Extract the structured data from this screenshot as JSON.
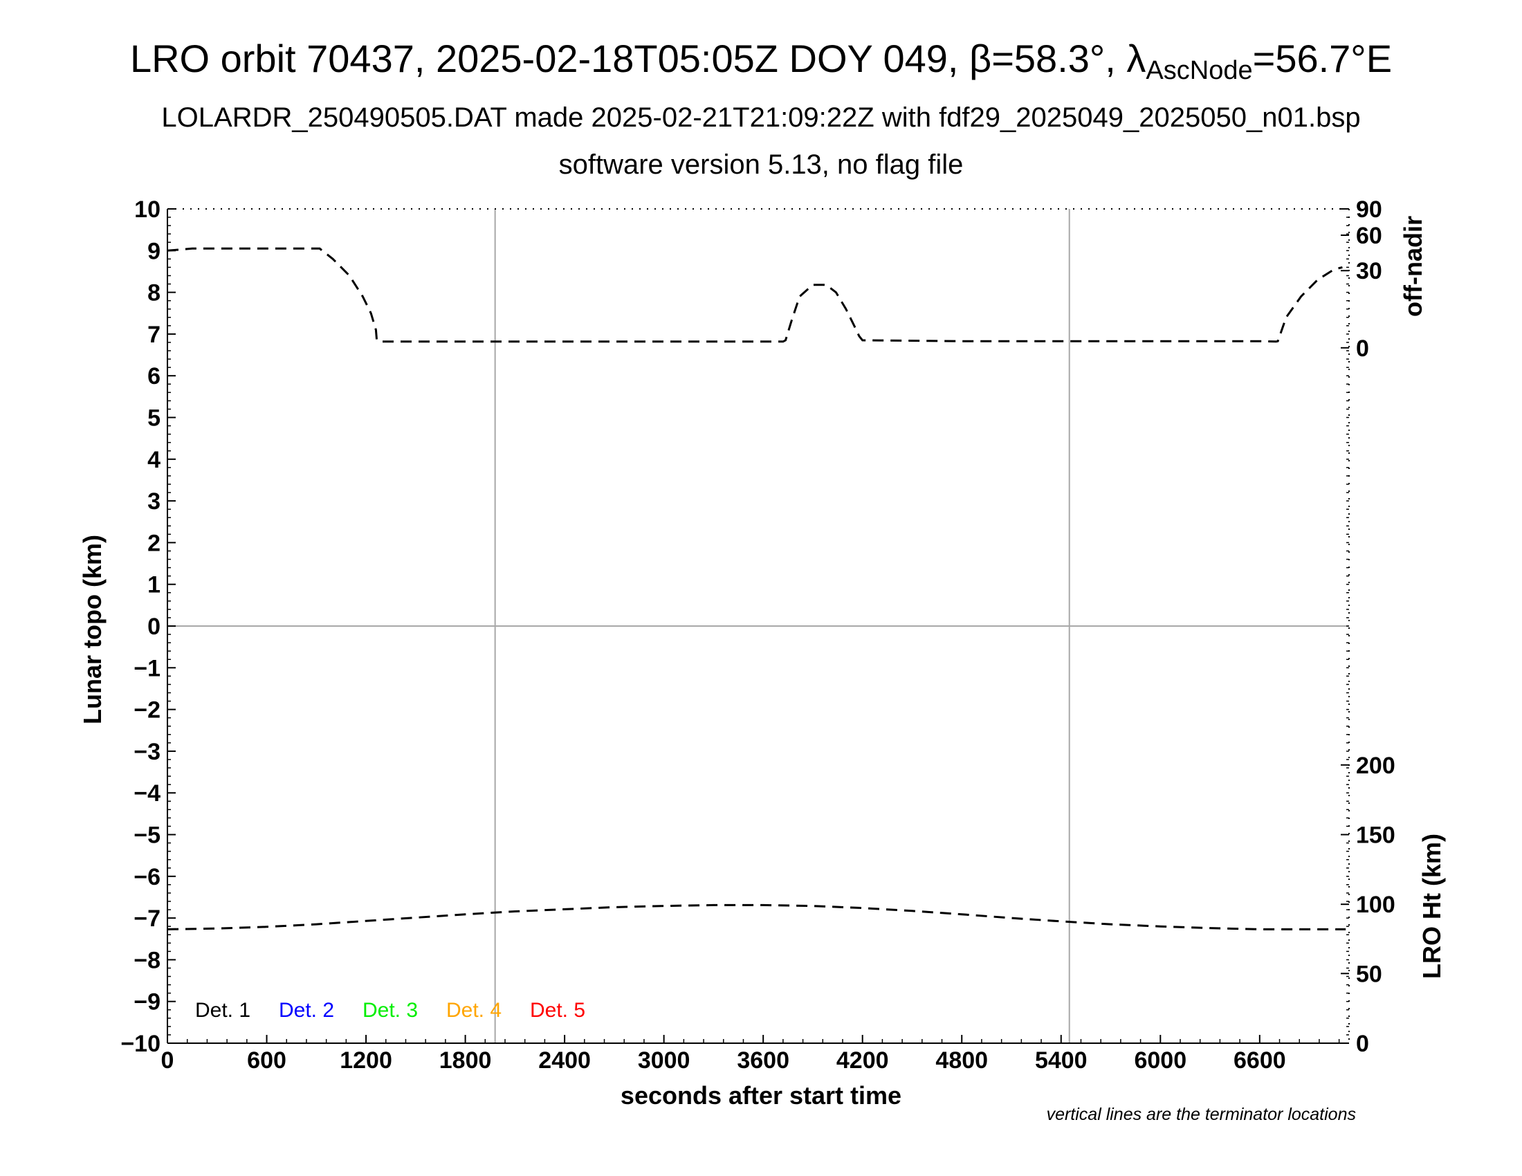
{
  "title": {
    "main_prefix": "LRO orbit 70437, 2025-02-18T05:05Z DOY 049, β=58.3°, λ",
    "main_sub": "AscNode",
    "main_suffix": "=56.7°E",
    "line2": "LOLARDR_250490505.DAT made 2025-02-21T21:09:22Z with fdf29_2025049_2025050_n01.bsp",
    "line3": "software version 5.13, no flag file"
  },
  "note": "vertical lines are the terminator locations",
  "chart_data": {
    "type": "line",
    "xlabel": "seconds after start time",
    "ylabel_left": "Lunar topo (km)",
    "ylabel_right_top": "off-nadir",
    "ylabel_right_bottom": "LRO Ht (km)",
    "xlim": [
      0,
      7140
    ],
    "ylim": [
      -10,
      10
    ],
    "x_ticks": [
      "0",
      "600",
      "1200",
      "1800",
      "2400",
      "3000",
      "3600",
      "4200",
      "4800",
      "5400",
      "6000",
      "6600"
    ],
    "x_tick_values": [
      0,
      600,
      1200,
      1800,
      2400,
      3000,
      3600,
      4200,
      4800,
      5400,
      6000,
      6600
    ],
    "y_ticks_left": [
      "−10",
      "−9",
      "−8",
      "−7",
      "−6",
      "−5",
      "−4",
      "−3",
      "−2",
      "−1",
      "0",
      "1",
      "2",
      "3",
      "4",
      "5",
      "6",
      "7",
      "8",
      "9",
      "10"
    ],
    "y_tick_values_left": [
      -10,
      -9,
      -8,
      -7,
      -6,
      -5,
      -4,
      -3,
      -2,
      -1,
      0,
      1,
      2,
      3,
      4,
      5,
      6,
      7,
      8,
      9,
      10
    ],
    "off_nadir_ticks": [
      {
        "label": "90",
        "y": 10
      },
      {
        "label": "60",
        "y": 9.37
      },
      {
        "label": "30",
        "y": 8.52
      },
      {
        "label": "0",
        "y": 6.67
      }
    ],
    "lro_ht_ticks": [
      {
        "label": "200",
        "y": -3.33
      },
      {
        "label": "150",
        "y": -5
      },
      {
        "label": "100",
        "y": -6.67
      },
      {
        "label": "50",
        "y": -8.33
      },
      {
        "label": "0",
        "y": -10
      }
    ],
    "terminator_x": [
      1980,
      5450
    ],
    "zero_line_y": 0,
    "grid": false,
    "legend_position": "bottom-left",
    "legend": [
      {
        "label": "Det. 1",
        "color": "#000000"
      },
      {
        "label": "Det. 2",
        "color": "#0000ff"
      },
      {
        "label": "Det. 3",
        "color": "#00ee00"
      },
      {
        "label": "Det. 4",
        "color": "#ffa500"
      },
      {
        "label": "Det. 5",
        "color": "#ff0000"
      }
    ],
    "series": [
      {
        "style": "dashed",
        "color": "#000000",
        "x": [
          0,
          150,
          300,
          500,
          700,
          900,
          920,
          1000,
          1100,
          1180,
          1230,
          1260,
          1265,
          1300,
          1800,
          2400,
          3000,
          3600,
          3720,
          3735,
          3770,
          3820,
          3900,
          3980,
          4040,
          4100,
          4150,
          4180,
          4200,
          4800,
          5400,
          6000,
          6600,
          6700,
          6710,
          6760,
          6850,
          6950,
          7050,
          7100
        ],
        "y": [
          9.0,
          9.05,
          9.05,
          9.05,
          9.05,
          9.05,
          9.05,
          8.8,
          8.4,
          7.9,
          7.5,
          7.1,
          6.85,
          6.82,
          6.82,
          6.82,
          6.82,
          6.82,
          6.82,
          6.85,
          7.3,
          7.9,
          8.18,
          8.18,
          8.0,
          7.6,
          7.2,
          6.95,
          6.85,
          6.83,
          6.83,
          6.83,
          6.83,
          6.82,
          6.83,
          7.4,
          7.9,
          8.3,
          8.55,
          8.6
        ]
      },
      {
        "style": "dashed",
        "color": "#000000",
        "x": [
          0,
          300,
          600,
          900,
          1200,
          1500,
          1800,
          2100,
          2400,
          2700,
          3000,
          3300,
          3600,
          3900,
          4200,
          4500,
          4800,
          5100,
          5400,
          5700,
          6000,
          6300,
          6600,
          6900,
          7120
        ],
        "y": [
          -7.27,
          -7.25,
          -7.21,
          -7.15,
          -7.07,
          -6.99,
          -6.91,
          -6.84,
          -6.79,
          -6.74,
          -6.71,
          -6.69,
          -6.69,
          -6.71,
          -6.76,
          -6.83,
          -6.91,
          -7.0,
          -7.08,
          -7.15,
          -7.2,
          -7.24,
          -7.27,
          -7.27,
          -7.27
        ]
      }
    ]
  }
}
